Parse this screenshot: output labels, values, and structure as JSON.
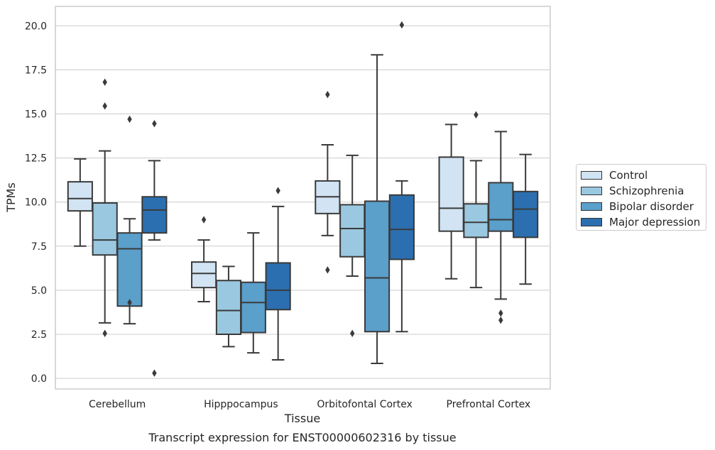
{
  "caption": "Transcript expression for ENST00000602316 by tissue",
  "chart_data": {
    "type": "box",
    "xlabel": "Tissue",
    "ylabel": "TPMs",
    "ylim": [
      -0.6,
      21.1
    ],
    "yticks": [
      "0.0",
      "2.5",
      "5.0",
      "7.5",
      "10.0",
      "12.5",
      "15.0",
      "17.5",
      "20.0"
    ],
    "ytick_values": [
      0,
      2.5,
      5,
      7.5,
      10,
      12.5,
      15,
      17.5,
      20
    ],
    "categories": [
      "Cerebellum",
      "Hipppocampus",
      "Orbitofontal Cortex",
      "Prefrontal Cortex"
    ],
    "grid": "horizontal",
    "legend_position": "right-outside",
    "series": [
      {
        "name": "Control",
        "color": "#d2e3f3",
        "boxes": [
          {
            "whislo": 7.5,
            "q1": 9.5,
            "med": 10.2,
            "q3": 11.15,
            "whishi": 12.45,
            "fliers": []
          },
          {
            "whislo": 4.35,
            "q1": 5.15,
            "med": 5.95,
            "q3": 6.6,
            "whishi": 7.85,
            "fliers": [
              9.0
            ]
          },
          {
            "whislo": 8.1,
            "q1": 9.35,
            "med": 10.3,
            "q3": 11.2,
            "whishi": 13.25,
            "fliers": [
              16.1,
              6.15
            ]
          },
          {
            "whislo": 5.65,
            "q1": 8.35,
            "med": 9.65,
            "q3": 12.55,
            "whishi": 14.4,
            "fliers": []
          }
        ]
      },
      {
        "name": "Schizophrenia",
        "color": "#9ac8e0",
        "boxes": [
          {
            "whislo": 3.15,
            "q1": 7.0,
            "med": 7.85,
            "q3": 9.95,
            "whishi": 12.9,
            "fliers": [
              16.8,
              15.45,
              2.55
            ]
          },
          {
            "whislo": 1.8,
            "q1": 2.5,
            "med": 3.85,
            "q3": 5.55,
            "whishi": 6.35,
            "fliers": []
          },
          {
            "whislo": 5.8,
            "q1": 6.9,
            "med": 8.5,
            "q3": 9.85,
            "whishi": 12.65,
            "fliers": [
              2.55
            ]
          },
          {
            "whislo": 5.15,
            "q1": 8.0,
            "med": 8.85,
            "q3": 9.9,
            "whishi": 12.35,
            "fliers": [
              14.95
            ]
          }
        ]
      },
      {
        "name": "Bipolar disorder",
        "color": "#5b9fcb",
        "boxes": [
          {
            "whislo": 3.1,
            "q1": 4.1,
            "med": 7.35,
            "q3": 8.25,
            "whishi": 9.05,
            "fliers": [
              14.7,
              4.3
            ]
          },
          {
            "whislo": 1.45,
            "q1": 2.6,
            "med": 4.3,
            "q3": 5.45,
            "whishi": 8.25,
            "fliers": []
          },
          {
            "whislo": 0.85,
            "q1": 2.65,
            "med": 5.7,
            "q3": 10.05,
            "whishi": 18.35,
            "fliers": []
          },
          {
            "whislo": 4.5,
            "q1": 8.35,
            "med": 9.0,
            "q3": 11.1,
            "whishi": 14.0,
            "fliers": [
              3.7,
              3.3
            ]
          }
        ]
      },
      {
        "name": "Major depression",
        "color": "#2b6fb0",
        "boxes": [
          {
            "whislo": 7.85,
            "q1": 8.25,
            "med": 9.55,
            "q3": 10.3,
            "whishi": 12.35,
            "fliers": [
              14.45,
              0.3
            ]
          },
          {
            "whislo": 1.05,
            "q1": 3.9,
            "med": 5.0,
            "q3": 6.55,
            "whishi": 9.75,
            "fliers": [
              10.65
            ]
          },
          {
            "whislo": 2.65,
            "q1": 6.75,
            "med": 8.45,
            "q3": 10.4,
            "whishi": 11.2,
            "fliers": [
              20.05
            ]
          },
          {
            "whislo": 5.35,
            "q1": 8.0,
            "med": 9.6,
            "q3": 10.6,
            "whishi": 12.7,
            "fliers": []
          }
        ]
      }
    ]
  }
}
